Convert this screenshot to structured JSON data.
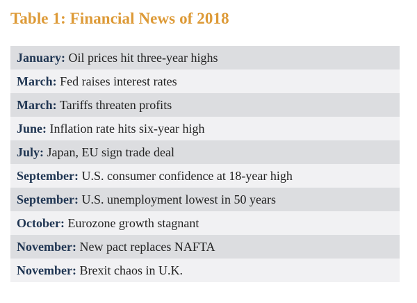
{
  "title": "Table 1: Financial News of 2018",
  "colors": {
    "title": "#dd9a37",
    "month": "#1f3552",
    "row_shaded": "#dcdde0",
    "row_plain": "#f1f1f3"
  },
  "rows": [
    {
      "month": "January:",
      "text": "Oil prices hit three-year highs"
    },
    {
      "month": "March:",
      "text": "Fed raises interest rates"
    },
    {
      "month": "March:",
      "text": "Tariffs threaten profits"
    },
    {
      "month": "June:",
      "text": "Inflation rate hits six-year high"
    },
    {
      "month": "July:",
      "text": "Japan, EU sign trade deal"
    },
    {
      "month": "September:",
      "text": "U.S. consumer confidence at 18-year high"
    },
    {
      "month": "September:",
      "text": "U.S. unemployment lowest in 50 years"
    },
    {
      "month": "October:",
      "text": "Eurozone growth stagnant"
    },
    {
      "month": "November:",
      "text": "New pact replaces NAFTA"
    },
    {
      "month": "November:",
      "text": "Brexit chaos in U.K."
    }
  ]
}
